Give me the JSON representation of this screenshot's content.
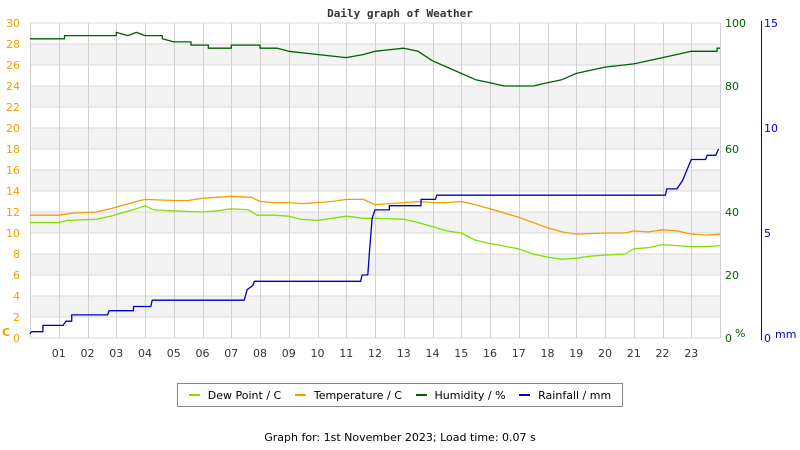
{
  "chart_data": {
    "type": "line",
    "title": "Daily graph of Weather",
    "xlabel": "",
    "x_ticks": [
      "01",
      "02",
      "03",
      "04",
      "05",
      "06",
      "07",
      "08",
      "09",
      "10",
      "11",
      "12",
      "13",
      "14",
      "15",
      "16",
      "17",
      "18",
      "19",
      "20",
      "21",
      "22",
      "23"
    ],
    "xlim": [
      0,
      24
    ],
    "axes": {
      "left": {
        "label": "C",
        "ticks": [
          0,
          2,
          4,
          6,
          8,
          10,
          12,
          14,
          16,
          18,
          20,
          22,
          24,
          26,
          28,
          30
        ],
        "ylim": [
          0,
          30
        ],
        "color": "#f0a000"
      },
      "right1": {
        "label": "%",
        "ticks": [
          0,
          20,
          40,
          60,
          80,
          100
        ],
        "ylim": [
          0,
          100
        ],
        "color": "#006000"
      },
      "right2": {
        "label": "mm",
        "ticks": [
          0,
          5,
          10,
          15
        ],
        "ylim": [
          0,
          15
        ],
        "color": "#0000c0"
      }
    },
    "grid": true,
    "legend_position": "bottom",
    "series": [
      {
        "name": "Dew Point / C",
        "axis": "left",
        "color": "#80e000",
        "points": [
          [
            0,
            11.0
          ],
          [
            1.0,
            11.0
          ],
          [
            1.3,
            11.2
          ],
          [
            2.3,
            11.3
          ],
          [
            2.8,
            11.6
          ],
          [
            3.3,
            12.0
          ],
          [
            3.7,
            12.3
          ],
          [
            4.0,
            12.6
          ],
          [
            4.3,
            12.2
          ],
          [
            5.0,
            12.1
          ],
          [
            6.0,
            12.0
          ],
          [
            6.5,
            12.1
          ],
          [
            7.0,
            12.3
          ],
          [
            7.6,
            12.2
          ],
          [
            7.9,
            11.7
          ],
          [
            8.5,
            11.7
          ],
          [
            9.0,
            11.6
          ],
          [
            9.4,
            11.3
          ],
          [
            10.0,
            11.2
          ],
          [
            10.5,
            11.4
          ],
          [
            11.0,
            11.6
          ],
          [
            11.6,
            11.4
          ],
          [
            12.0,
            11.4
          ],
          [
            13.0,
            11.3
          ],
          [
            13.5,
            11.0
          ],
          [
            14.0,
            10.6
          ],
          [
            14.5,
            10.2
          ],
          [
            15.0,
            10.0
          ],
          [
            15.5,
            9.3
          ],
          [
            16.0,
            9.0
          ],
          [
            17.0,
            8.5
          ],
          [
            17.5,
            8.0
          ],
          [
            18.0,
            7.7
          ],
          [
            18.5,
            7.5
          ],
          [
            19.0,
            7.6
          ],
          [
            19.5,
            7.8
          ],
          [
            20.0,
            7.9
          ],
          [
            20.7,
            8.0
          ],
          [
            21.0,
            8.5
          ],
          [
            21.5,
            8.6
          ],
          [
            22.0,
            8.9
          ],
          [
            22.5,
            8.8
          ],
          [
            23.0,
            8.7
          ],
          [
            23.5,
            8.7
          ],
          [
            24.0,
            8.8
          ]
        ]
      },
      {
        "name": "Temperature / C",
        "axis": "left",
        "color": "#f0a000",
        "points": [
          [
            0,
            11.7
          ],
          [
            1.0,
            11.7
          ],
          [
            1.5,
            11.9
          ],
          [
            2.3,
            12.0
          ],
          [
            2.8,
            12.3
          ],
          [
            3.3,
            12.7
          ],
          [
            3.7,
            13.0
          ],
          [
            4.0,
            13.2
          ],
          [
            5.0,
            13.1
          ],
          [
            5.5,
            13.1
          ],
          [
            6.0,
            13.3
          ],
          [
            6.5,
            13.4
          ],
          [
            7.0,
            13.5
          ],
          [
            7.7,
            13.4
          ],
          [
            8.0,
            13.0
          ],
          [
            8.5,
            12.9
          ],
          [
            9.0,
            12.9
          ],
          [
            9.5,
            12.8
          ],
          [
            10.0,
            12.9
          ],
          [
            10.5,
            13.0
          ],
          [
            11.0,
            13.2
          ],
          [
            11.6,
            13.2
          ],
          [
            12.0,
            12.7
          ],
          [
            12.5,
            12.8
          ],
          [
            13.0,
            12.9
          ],
          [
            13.5,
            13.0
          ],
          [
            14.0,
            12.9
          ],
          [
            14.5,
            12.9
          ],
          [
            15.0,
            13.0
          ],
          [
            15.5,
            12.7
          ],
          [
            16.0,
            12.3
          ],
          [
            17.0,
            11.5
          ],
          [
            17.5,
            11.0
          ],
          [
            18.0,
            10.5
          ],
          [
            18.5,
            10.1
          ],
          [
            19.0,
            9.9
          ],
          [
            20.0,
            10.0
          ],
          [
            20.7,
            10.0
          ],
          [
            21.0,
            10.2
          ],
          [
            21.5,
            10.1
          ],
          [
            22.0,
            10.3
          ],
          [
            22.5,
            10.2
          ],
          [
            23.0,
            9.9
          ],
          [
            23.5,
            9.8
          ],
          [
            24.0,
            9.9
          ]
        ]
      },
      {
        "name": "Humidity / %",
        "axis": "right1",
        "color": "#006000",
        "points": [
          [
            0,
            95
          ],
          [
            1.2,
            95
          ],
          [
            1.2,
            96
          ],
          [
            3.0,
            96
          ],
          [
            3.0,
            97
          ],
          [
            3.4,
            96
          ],
          [
            3.7,
            97
          ],
          [
            4.0,
            96
          ],
          [
            4.6,
            96
          ],
          [
            4.6,
            95
          ],
          [
            5.0,
            94
          ],
          [
            5.6,
            94
          ],
          [
            5.6,
            93
          ],
          [
            6.2,
            93
          ],
          [
            6.2,
            92
          ],
          [
            7.0,
            92
          ],
          [
            7.0,
            93
          ],
          [
            8.0,
            93
          ],
          [
            8.0,
            92
          ],
          [
            8.6,
            92
          ],
          [
            9.0,
            91
          ],
          [
            10.0,
            90
          ],
          [
            11.0,
            89
          ],
          [
            11.6,
            90
          ],
          [
            12.0,
            91
          ],
          [
            13.0,
            92
          ],
          [
            13.5,
            91
          ],
          [
            14.0,
            88
          ],
          [
            14.5,
            86
          ],
          [
            15.0,
            84
          ],
          [
            15.5,
            82
          ],
          [
            16.0,
            81
          ],
          [
            16.5,
            80
          ],
          [
            17.5,
            80
          ],
          [
            18.0,
            81
          ],
          [
            18.5,
            82
          ],
          [
            19.0,
            84
          ],
          [
            19.5,
            85
          ],
          [
            20.0,
            86
          ],
          [
            21.0,
            87
          ],
          [
            21.5,
            88
          ],
          [
            22.0,
            89
          ],
          [
            22.5,
            90
          ],
          [
            23.0,
            91
          ],
          [
            23.9,
            91
          ],
          [
            23.9,
            92
          ],
          [
            24.0,
            92
          ]
        ]
      },
      {
        "name": "Rainfall / mm",
        "axis": "right2",
        "color": "#0000c0",
        "points": [
          [
            0,
            0.2
          ],
          [
            0.05,
            0.3
          ],
          [
            0.45,
            0.3
          ],
          [
            0.45,
            0.6
          ],
          [
            1.15,
            0.6
          ],
          [
            1.25,
            0.8
          ],
          [
            1.45,
            0.8
          ],
          [
            1.45,
            1.1
          ],
          [
            2.7,
            1.1
          ],
          [
            2.75,
            1.3
          ],
          [
            3.6,
            1.3
          ],
          [
            3.6,
            1.5
          ],
          [
            4.2,
            1.5
          ],
          [
            4.25,
            1.8
          ],
          [
            7.45,
            1.8
          ],
          [
            7.55,
            2.3
          ],
          [
            7.75,
            2.5
          ],
          [
            7.8,
            2.7
          ],
          [
            11.5,
            2.7
          ],
          [
            11.55,
            3.0
          ],
          [
            11.75,
            3.0
          ],
          [
            11.8,
            4.0
          ],
          [
            11.9,
            5.7
          ],
          [
            12.0,
            6.1
          ],
          [
            12.5,
            6.1
          ],
          [
            12.5,
            6.3
          ],
          [
            13.6,
            6.3
          ],
          [
            13.6,
            6.6
          ],
          [
            14.1,
            6.6
          ],
          [
            14.15,
            6.8
          ],
          [
            22.1,
            6.8
          ],
          [
            22.15,
            7.1
          ],
          [
            22.5,
            7.1
          ],
          [
            22.7,
            7.5
          ],
          [
            22.85,
            8.0
          ],
          [
            23.0,
            8.5
          ],
          [
            23.5,
            8.5
          ],
          [
            23.55,
            8.7
          ],
          [
            23.85,
            8.7
          ],
          [
            23.95,
            9.0
          ]
        ]
      }
    ]
  },
  "legend": {
    "items": [
      {
        "label": "Dew Point / C",
        "color": "#80e000"
      },
      {
        "label": "Temperature / C",
        "color": "#f0a000"
      },
      {
        "label": "Humidity / %",
        "color": "#006000"
      },
      {
        "label": "Rainfall / mm",
        "color": "#0000c0"
      }
    ]
  },
  "footer": {
    "text": "Graph for: 1st November 2023; Load time: 0.07 s"
  }
}
